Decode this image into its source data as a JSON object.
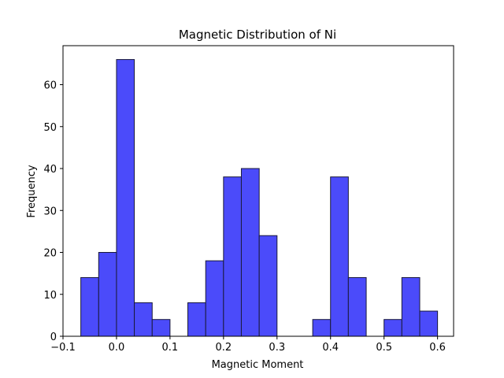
{
  "chart_data": {
    "type": "bar",
    "title": "Magnetic Distribution of Ni",
    "xlabel": "Magnetic Moment",
    "ylabel": "Frequency",
    "xlim": [
      -0.1,
      0.63
    ],
    "ylim": [
      0,
      69.3
    ],
    "bin_width": 0.0333,
    "bins": [
      {
        "x0": -0.0667,
        "x1": -0.0333,
        "value": 14
      },
      {
        "x0": -0.0333,
        "x1": 0.0,
        "value": 20
      },
      {
        "x0": 0.0,
        "x1": 0.0333,
        "value": 66
      },
      {
        "x0": 0.0333,
        "x1": 0.0667,
        "value": 8
      },
      {
        "x0": 0.0667,
        "x1": 0.1,
        "value": 4
      },
      {
        "x0": 0.1,
        "x1": 0.1333,
        "value": 0
      },
      {
        "x0": 0.1333,
        "x1": 0.1667,
        "value": 8
      },
      {
        "x0": 0.1667,
        "x1": 0.2,
        "value": 18
      },
      {
        "x0": 0.2,
        "x1": 0.2333,
        "value": 38
      },
      {
        "x0": 0.2333,
        "x1": 0.2667,
        "value": 40
      },
      {
        "x0": 0.2667,
        "x1": 0.3,
        "value": 24
      },
      {
        "x0": 0.3,
        "x1": 0.3333,
        "value": 0
      },
      {
        "x0": 0.3333,
        "x1": 0.3667,
        "value": 0
      },
      {
        "x0": 0.3667,
        "x1": 0.4,
        "value": 4
      },
      {
        "x0": 0.4,
        "x1": 0.4333,
        "value": 38
      },
      {
        "x0": 0.4333,
        "x1": 0.4667,
        "value": 14
      },
      {
        "x0": 0.4667,
        "x1": 0.5,
        "value": 0
      },
      {
        "x0": 0.5,
        "x1": 0.5333,
        "value": 4
      },
      {
        "x0": 0.5333,
        "x1": 0.5667,
        "value": 14
      },
      {
        "x0": 0.5667,
        "x1": 0.6,
        "value": 6
      }
    ],
    "xticks": [
      {
        "value": -0.1,
        "label": "−0.1"
      },
      {
        "value": 0.0,
        "label": "0.0"
      },
      {
        "value": 0.1,
        "label": "0.1"
      },
      {
        "value": 0.2,
        "label": "0.2"
      },
      {
        "value": 0.3,
        "label": "0.3"
      },
      {
        "value": 0.4,
        "label": "0.4"
      },
      {
        "value": 0.5,
        "label": "0.5"
      },
      {
        "value": 0.6,
        "label": "0.6"
      }
    ],
    "yticks": [
      {
        "value": 0,
        "label": "0"
      },
      {
        "value": 10,
        "label": "10"
      },
      {
        "value": 20,
        "label": "20"
      },
      {
        "value": 30,
        "label": "30"
      },
      {
        "value": 40,
        "label": "40"
      },
      {
        "value": 50,
        "label": "50"
      },
      {
        "value": 60,
        "label": "60"
      }
    ],
    "bar_color": "#4b4bfa",
    "bar_edge_color": "#1a1a3a",
    "grid": false,
    "legend": "none"
  }
}
